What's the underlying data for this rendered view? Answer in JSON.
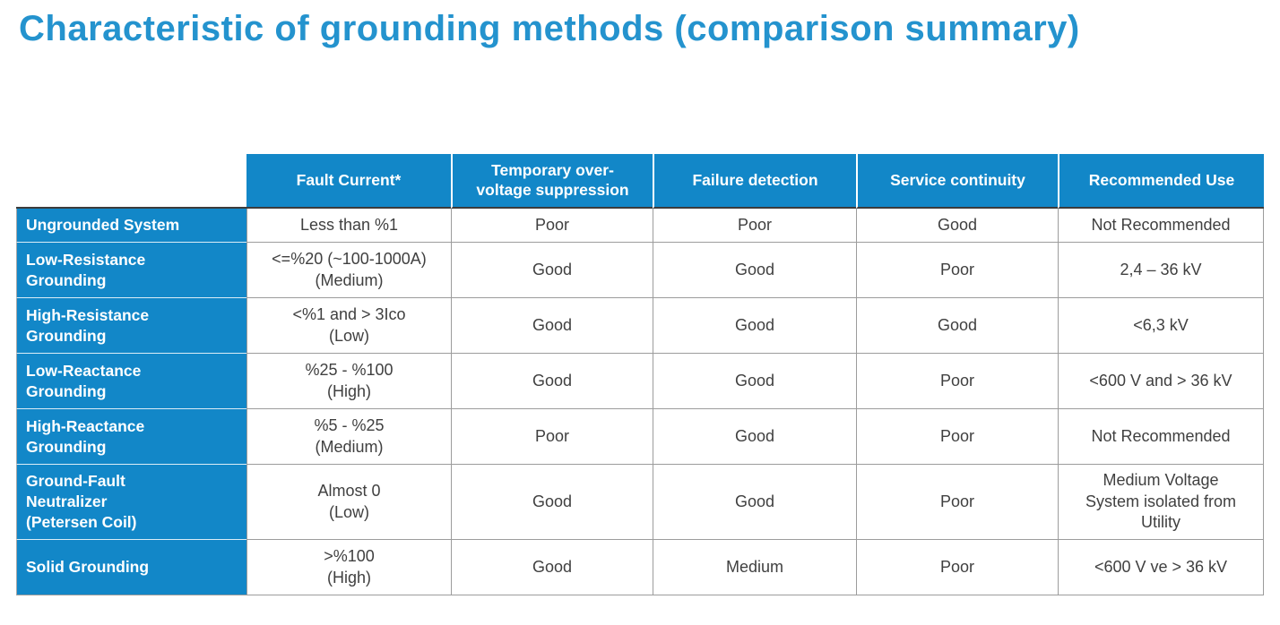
{
  "title": "Characteristic of grounding methods (comparison summary)",
  "colors": {
    "title_blue": "#2493ce",
    "header_blue": "#1287c8",
    "body_text": "#404040",
    "grid_line": "#9c9c9c"
  },
  "chart_data": {
    "type": "table",
    "title": "Characteristic of grounding methods (comparison summary)",
    "columns": [
      "",
      "Fault Current*",
      "Temporary over-voltage suppression",
      "Failure detection",
      "Service continuity",
      "Recommended Use"
    ],
    "rows": [
      [
        "Ungrounded System",
        "Less than %1",
        "Poor",
        "Poor",
        "Good",
        "Not Recommended"
      ],
      [
        "Low-Resistance Grounding",
        "<=%20 (~100-1000A) (Medium)",
        "Good",
        "Good",
        "Poor",
        "2,4 – 36 kV"
      ],
      [
        "High-Resistance Grounding",
        "<%1 and > 3Ico (Low)",
        "Good",
        "Good",
        "Good",
        "<6,3 kV"
      ],
      [
        "Low-Reactance Grounding",
        "%25 - %100 (High)",
        "Good",
        "Good",
        "Poor",
        "<600 V and > 36 kV"
      ],
      [
        "High-Reactance Grounding",
        "%5 - %25 (Medium)",
        "Poor",
        "Good",
        "Poor",
        "Not Recommended"
      ],
      [
        "Ground-Fault Neutralizer (Petersen Coil)",
        "Almost 0 (Low)",
        "Good",
        "Good",
        "Poor",
        "Medium Voltage System isolated from Utility"
      ],
      [
        "Solid Grounding",
        ">%100 (High)",
        "Good",
        "Medium",
        "Poor",
        "<600 V ve > 36 kV"
      ]
    ]
  },
  "table": {
    "columns": [
      "Fault Current*",
      "Temporary over-\nvoltage suppression",
      "Failure detection",
      "Service continuity",
      "Recommended Use"
    ],
    "rows": [
      {
        "label": "Ungrounded System",
        "cells": [
          "Less than %1",
          "Poor",
          "Poor",
          "Good",
          "Not Recommended"
        ]
      },
      {
        "label": "Low-Resistance\nGrounding",
        "cells": [
          "<=%20 (~100-1000A)\n(Medium)",
          "Good",
          "Good",
          "Poor",
          "2,4 – 36 kV"
        ]
      },
      {
        "label": "High-Resistance\nGrounding",
        "cells": [
          "<%1 and > 3Ico\n(Low)",
          "Good",
          "Good",
          "Good",
          "<6,3 kV"
        ]
      },
      {
        "label": "Low-Reactance\nGrounding",
        "cells": [
          "%25 - %100\n(High)",
          "Good",
          "Good",
          "Poor",
          "<600 V and > 36 kV"
        ]
      },
      {
        "label": "High-Reactance\nGrounding",
        "cells": [
          "%5 - %25\n(Medium)",
          "Poor",
          "Good",
          "Poor",
          "Not Recommended"
        ]
      },
      {
        "label": "Ground-Fault\nNeutralizer\n(Petersen Coil)",
        "cells": [
          "Almost 0\n(Low)",
          "Good",
          "Good",
          "Poor",
          "Medium Voltage\nSystem isolated from\nUtility"
        ]
      },
      {
        "label": "Solid Grounding",
        "cells": [
          ">%100\n(High)",
          "Good",
          "Medium",
          "Poor",
          "<600 V ve > 36 kV"
        ]
      }
    ]
  }
}
